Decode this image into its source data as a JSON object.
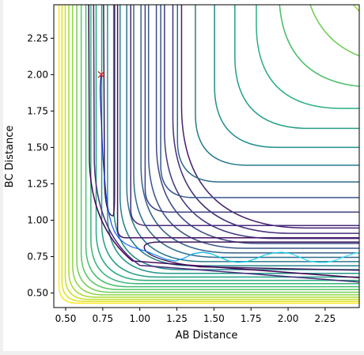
{
  "chart_data": {
    "type": "contour",
    "title": "",
    "xlabel": "AB Distance",
    "ylabel": "BC Distance",
    "xlim": [
      0.42,
      2.48
    ],
    "ylim": [
      0.4,
      2.48
    ],
    "xticks": [
      "0.50",
      "0.75",
      "1.00",
      "1.25",
      "1.50",
      "1.75",
      "2.00",
      "2.25"
    ],
    "yticks": [
      "0.50",
      "0.75",
      "1.00",
      "1.25",
      "1.50",
      "1.75",
      "2.00",
      "2.25"
    ],
    "xtick_values": [
      0.5,
      0.75,
      1.0,
      1.25,
      1.5,
      1.75,
      2.0,
      2.25
    ],
    "ytick_values": [
      0.5,
      0.75,
      1.0,
      1.25,
      1.5,
      1.75,
      2.0,
      2.25
    ],
    "colormap": "viridis",
    "grid": false,
    "legend": "none",
    "start_marker": {
      "x": 0.74,
      "y": 2.0,
      "symbol": "x",
      "color": "#d62728"
    },
    "trajectory": {
      "description_colors": [
        "#00008b",
        "#1f4fff",
        "#00c8e0",
        "#3ee8ff"
      ],
      "points": [
        [
          0.74,
          2.0
        ],
        [
          0.735,
          1.95
        ],
        [
          0.733,
          1.9
        ],
        [
          0.735,
          1.82
        ],
        [
          0.738,
          1.74
        ],
        [
          0.742,
          1.66
        ],
        [
          0.745,
          1.58
        ],
        [
          0.748,
          1.5
        ],
        [
          0.752,
          1.42
        ],
        [
          0.758,
          1.34
        ],
        [
          0.765,
          1.26
        ],
        [
          0.772,
          1.18
        ],
        [
          0.782,
          1.1
        ],
        [
          0.795,
          1.03
        ],
        [
          0.81,
          0.97
        ],
        [
          0.83,
          0.92
        ],
        [
          0.86,
          0.875
        ],
        [
          0.9,
          0.84
        ],
        [
          0.95,
          0.815
        ],
        [
          1.0,
          0.8
        ],
        [
          1.06,
          0.78
        ],
        [
          1.12,
          0.755
        ],
        [
          1.18,
          0.73
        ],
        [
          1.24,
          0.72
        ],
        [
          1.3,
          0.74
        ],
        [
          1.36,
          0.77
        ],
        [
          1.42,
          0.78
        ],
        [
          1.48,
          0.77
        ],
        [
          1.54,
          0.745
        ],
        [
          1.6,
          0.72
        ],
        [
          1.66,
          0.71
        ],
        [
          1.72,
          0.715
        ],
        [
          1.78,
          0.735
        ],
        [
          1.84,
          0.76
        ],
        [
          1.9,
          0.775
        ],
        [
          1.96,
          0.78
        ],
        [
          2.02,
          0.77
        ],
        [
          2.08,
          0.745
        ],
        [
          2.14,
          0.72
        ],
        [
          2.2,
          0.71
        ],
        [
          2.26,
          0.71
        ],
        [
          2.32,
          0.725
        ],
        [
          2.38,
          0.75
        ],
        [
          2.44,
          0.77
        ],
        [
          2.48,
          0.78
        ]
      ]
    },
    "contour_levels": {
      "count": 28,
      "colors_low_to_high": [
        "#440154",
        "#472d7b",
        "#3b528b",
        "#2c728e",
        "#21918c",
        "#28ae80",
        "#5ec962",
        "#addc30",
        "#fde725"
      ]
    }
  }
}
